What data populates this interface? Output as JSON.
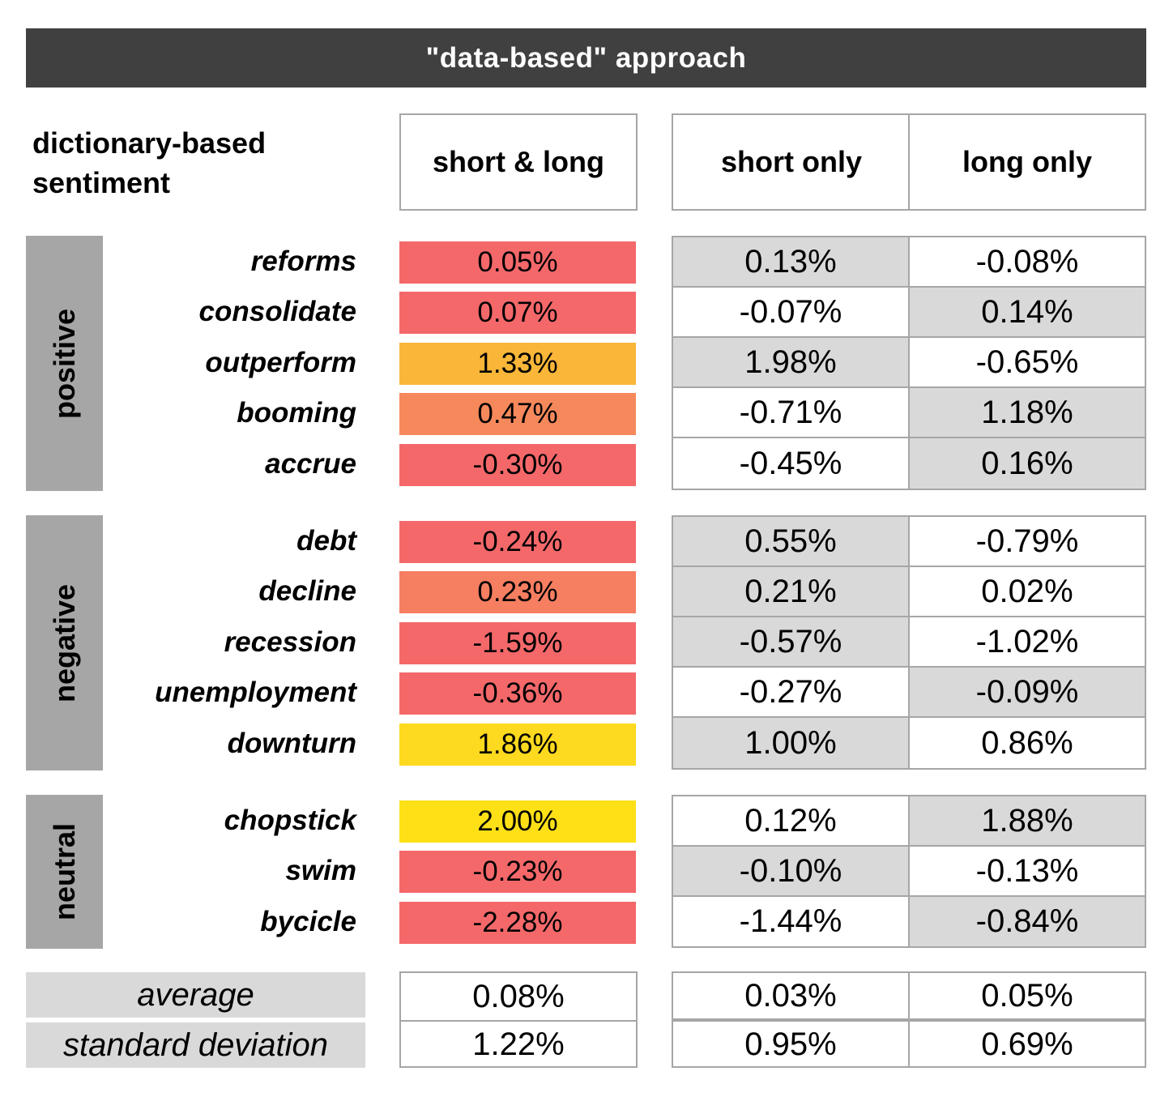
{
  "title": "\"data-based\" approach",
  "row_header": [
    "dictionary-based",
    "sentiment"
  ],
  "columns": {
    "short_long": "short & long",
    "short_only": "short only",
    "long_only": "long only"
  },
  "colors": {
    "banner": "#404040",
    "group_bar": "#a6a6a6",
    "shade": "#d9d9d9",
    "red": "#f4686a",
    "salmon": "#f67e61",
    "orange": "#f6895c",
    "amber": "#f9b639",
    "gold": "#fdd91f",
    "yellow": "#fee017"
  },
  "groups": [
    {
      "name": "positive",
      "rows": [
        {
          "word": "reforms",
          "short_long": "0.05%",
          "short_only": "0.13%",
          "long_only": "-0.08%",
          "color": "#f4686a",
          "shade": "short"
        },
        {
          "word": "consolidate",
          "short_long": "0.07%",
          "short_only": "-0.07%",
          "long_only": "0.14%",
          "color": "#f4686a",
          "shade": "long"
        },
        {
          "word": "outperform",
          "short_long": "1.33%",
          "short_only": "1.98%",
          "long_only": "-0.65%",
          "color": "#f9b639",
          "shade": "short"
        },
        {
          "word": "booming",
          "short_long": "0.47%",
          "short_only": "-0.71%",
          "long_only": "1.18%",
          "color": "#f6895c",
          "shade": "long"
        },
        {
          "word": "accrue",
          "short_long": "-0.30%",
          "short_only": "-0.45%",
          "long_only": "0.16%",
          "color": "#f4686a",
          "shade": "long"
        }
      ]
    },
    {
      "name": "negative",
      "rows": [
        {
          "word": "debt",
          "short_long": "-0.24%",
          "short_only": "0.55%",
          "long_only": "-0.79%",
          "color": "#f4686a",
          "shade": "short"
        },
        {
          "word": "decline",
          "short_long": "0.23%",
          "short_only": "0.21%",
          "long_only": "0.02%",
          "color": "#f67e61",
          "shade": "short"
        },
        {
          "word": "recession",
          "short_long": "-1.59%",
          "short_only": "-0.57%",
          "long_only": "-1.02%",
          "color": "#f4686a",
          "shade": "short"
        },
        {
          "word": "unemployment",
          "short_long": "-0.36%",
          "short_only": "-0.27%",
          "long_only": "-0.09%",
          "color": "#f4686a",
          "shade": "long"
        },
        {
          "word": "downturn",
          "short_long": "1.86%",
          "short_only": "1.00%",
          "long_only": "0.86%",
          "color": "#fdd91f",
          "shade": "short"
        }
      ]
    },
    {
      "name": "neutral",
      "rows": [
        {
          "word": "chopstick",
          "short_long": "2.00%",
          "short_only": "0.12%",
          "long_only": "1.88%",
          "color": "#fee017",
          "shade": "long"
        },
        {
          "word": "swim",
          "short_long": "-0.23%",
          "short_only": "-0.10%",
          "long_only": "-0.13%",
          "color": "#f4686a",
          "shade": "short"
        },
        {
          "word": "bycicle",
          "short_long": "-2.28%",
          "short_only": "-1.44%",
          "long_only": "-0.84%",
          "color": "#f4686a",
          "shade": "long"
        }
      ]
    }
  ],
  "stats": [
    {
      "label": "average",
      "short_long": "0.08%",
      "short_only": "0.03%",
      "long_only": "0.05%"
    },
    {
      "label": "standard deviation",
      "short_long": "1.22%",
      "short_only": "0.95%",
      "long_only": "0.69%"
    }
  ]
}
